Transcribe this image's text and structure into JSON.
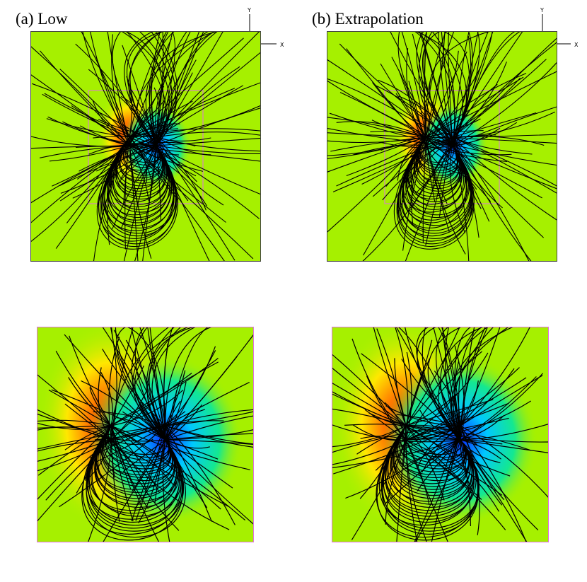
{
  "panels": [
    {
      "id": "a",
      "title": "(a) Low",
      "colors": {
        "field_bg": "#a6f000",
        "positive": "#ff1a00",
        "negative": "#0a2aff",
        "lines": "#000000",
        "frame": "#e070e0"
      }
    },
    {
      "id": "b",
      "title": "(b) Extrapolation",
      "colors": {
        "field_bg": "#a6f000",
        "positive": "#ff1a00",
        "negative": "#0a2aff",
        "lines": "#000000",
        "frame": "#e070e0"
      }
    }
  ],
  "axis_triad": {
    "y_label": "Y",
    "x_label": "X"
  }
}
